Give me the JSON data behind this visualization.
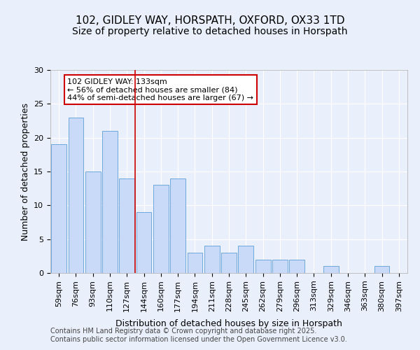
{
  "title1": "102, GIDLEY WAY, HORSPATH, OXFORD, OX33 1TD",
  "title2": "Size of property relative to detached houses in Horspath",
  "xlabel": "Distribution of detached houses by size in Horspath",
  "ylabel": "Number of detached properties",
  "categories": [
    "59sqm",
    "76sqm",
    "93sqm",
    "110sqm",
    "127sqm",
    "144sqm",
    "160sqm",
    "177sqm",
    "194sqm",
    "211sqm",
    "228sqm",
    "245sqm",
    "262sqm",
    "279sqm",
    "296sqm",
    "313sqm",
    "329sqm",
    "346sqm",
    "363sqm",
    "380sqm",
    "397sqm"
  ],
  "values": [
    19,
    23,
    15,
    21,
    14,
    9,
    13,
    14,
    3,
    4,
    3,
    4,
    2,
    2,
    2,
    0,
    1,
    0,
    0,
    1,
    0
  ],
  "bar_color": "#c9daf8",
  "bar_edge_color": "#6fa8dc",
  "annotation_text": "102 GIDLEY WAY: 133sqm\n← 56% of detached houses are smaller (84)\n44% of semi-detached houses are larger (67) →",
  "annotation_box_color": "#ffffff",
  "annotation_box_edge_color": "#cc0000",
  "red_line_color": "#cc0000",
  "ylim": [
    0,
    30
  ],
  "yticks": [
    0,
    5,
    10,
    15,
    20,
    25,
    30
  ],
  "footer": "Contains HM Land Registry data © Crown copyright and database right 2025.\nContains public sector information licensed under the Open Government Licence v3.0.",
  "bg_color": "#eaf0fb",
  "plot_bg_color": "#eaf0fb",
  "grid_color": "#ffffff",
  "title1_fontsize": 11,
  "title2_fontsize": 10,
  "xlabel_fontsize": 9,
  "ylabel_fontsize": 9,
  "tick_fontsize": 8,
  "annotation_fontsize": 8,
  "footer_fontsize": 7
}
